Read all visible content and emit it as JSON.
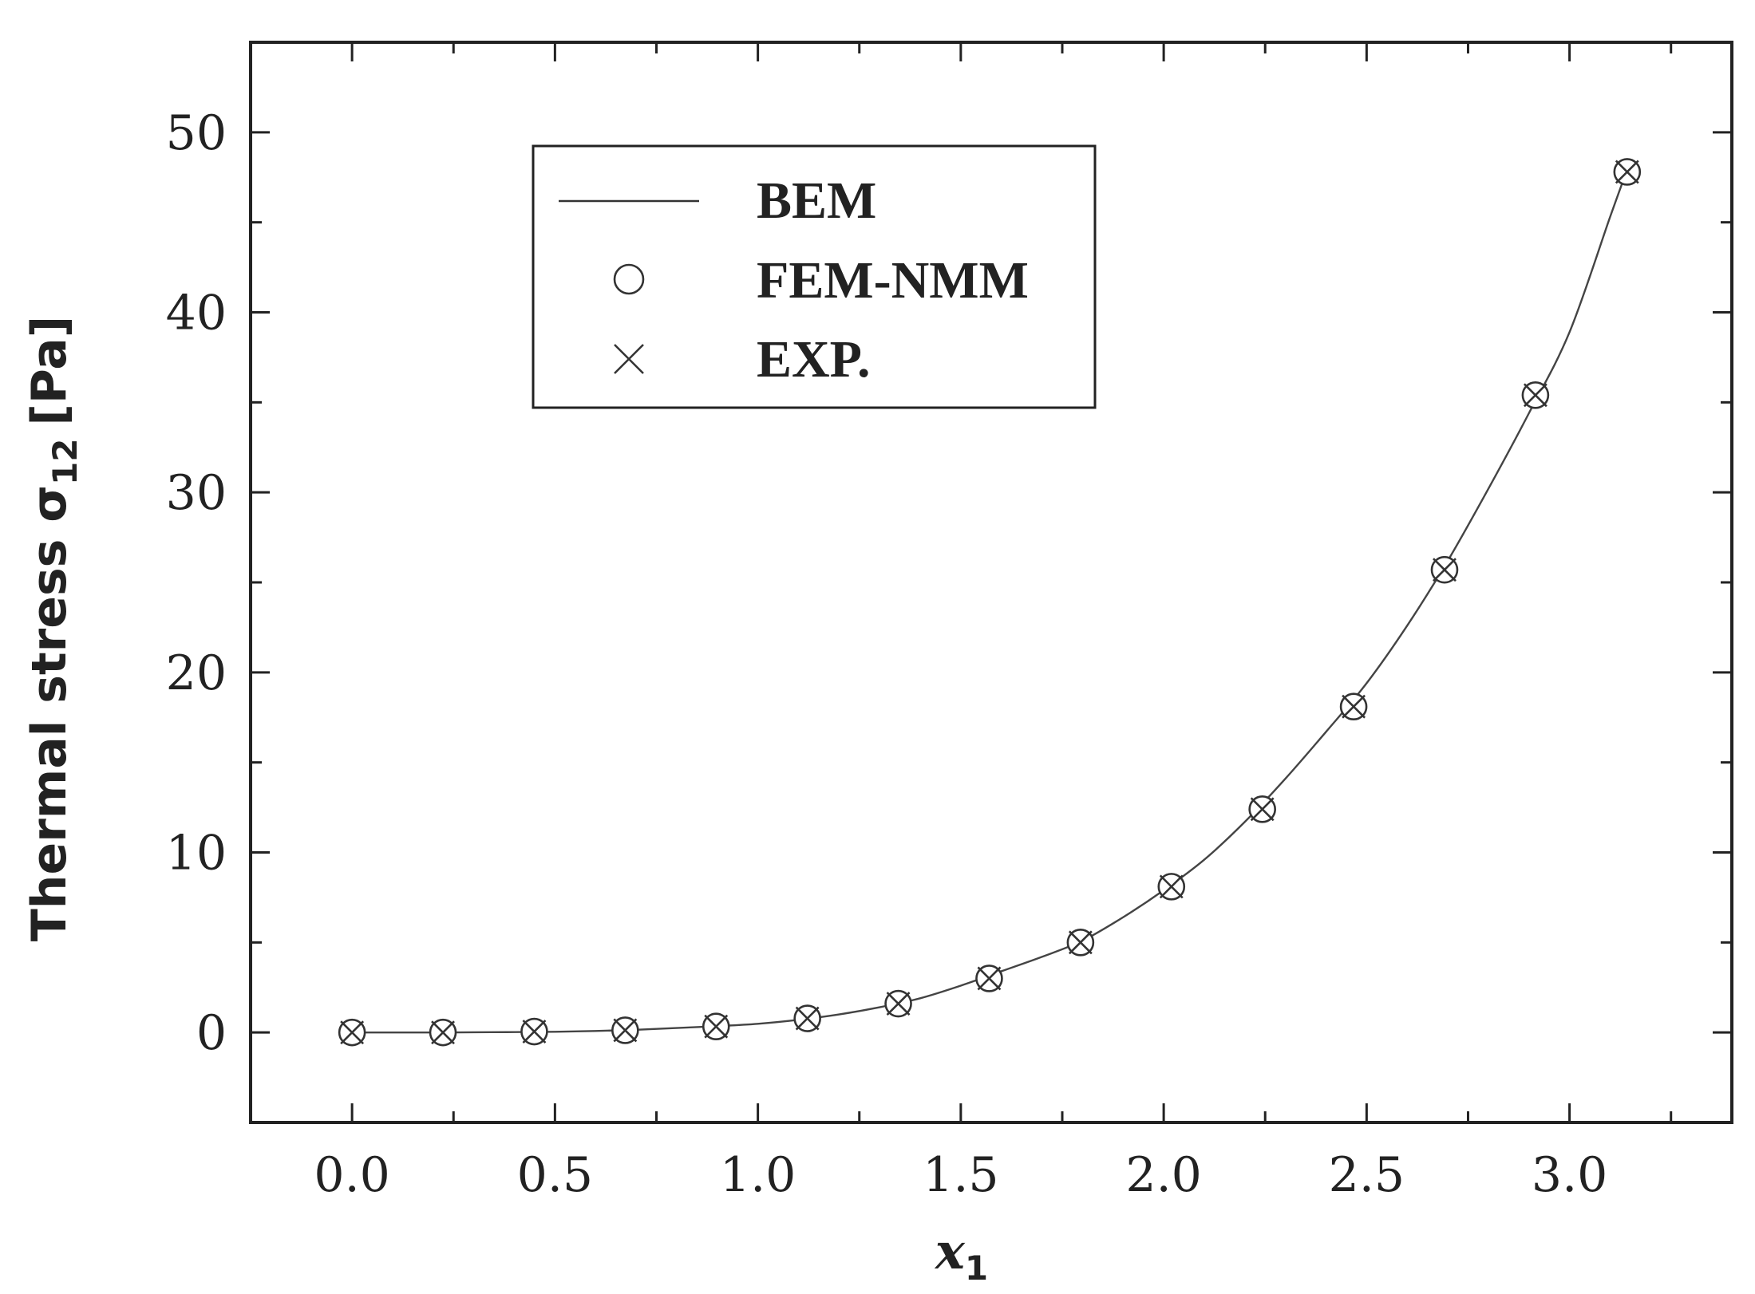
{
  "chart_data": {
    "type": "line",
    "x_axis": {
      "label_main": "x",
      "label_sub": "1",
      "range": [
        -0.25,
        3.4
      ],
      "major_ticks": [
        0.0,
        0.5,
        1.0,
        1.5,
        2.0,
        2.5,
        3.0
      ],
      "tick_labels": [
        "0.0",
        "0.5",
        "1.0",
        "1.5",
        "2.0",
        "2.5",
        "3.0"
      ]
    },
    "y_axis": {
      "label_main": "Thermal stress σ",
      "label_sub": "12",
      "label_unit": "[Pa]",
      "range": [
        -5,
        55
      ],
      "major_ticks": [
        0,
        10,
        20,
        30,
        40,
        50
      ],
      "tick_labels": [
        "0",
        "10",
        "20",
        "30",
        "40",
        "50"
      ]
    },
    "grid": false,
    "legend": {
      "placement": "top-left",
      "entries": [
        {
          "label": "BEM",
          "marker": "line"
        },
        {
          "label": "FEM-NMM",
          "marker": "circle"
        },
        {
          "label": "EXP.",
          "marker": "cross"
        }
      ]
    },
    "series": [
      {
        "name": "BEM",
        "style": "line",
        "x": [
          0,
          0.1,
          0.2,
          0.3,
          0.4,
          0.5,
          0.6,
          0.7,
          0.8,
          0.9,
          1.0,
          1.1,
          1.2,
          1.3,
          1.4,
          1.5,
          1.6,
          1.7,
          1.8,
          1.9,
          2.0,
          2.1,
          2.2,
          2.3,
          2.4,
          2.5,
          2.6,
          2.7,
          2.8,
          2.9,
          3.0,
          3.1,
          3.14
        ],
        "y": [
          0,
          0,
          0,
          0.01,
          0.02,
          0.04,
          0.08,
          0.15,
          0.25,
          0.35,
          0.48,
          0.7,
          1.0,
          1.4,
          1.9,
          2.6,
          3.4,
          4.2,
          5.1,
          6.4,
          7.9,
          9.6,
          11.7,
          14.1,
          16.7,
          19.4,
          22.6,
          26.2,
          30.2,
          34.4,
          38.9,
          45.3,
          47.8
        ]
      },
      {
        "name": "FEM-NMM",
        "style": "circle",
        "x": [
          0.0,
          0.224,
          0.449,
          0.673,
          0.897,
          1.122,
          1.346,
          1.57,
          1.795,
          2.019,
          2.243,
          2.468,
          2.692,
          2.916,
          3.142
        ],
        "y": [
          0.0,
          0.0,
          0.05,
          0.12,
          0.33,
          0.78,
          1.6,
          3.0,
          5.0,
          8.1,
          12.4,
          18.1,
          25.7,
          35.4,
          47.8
        ]
      },
      {
        "name": "EXP.",
        "style": "cross",
        "x": [
          0.0,
          0.224,
          0.449,
          0.673,
          0.897,
          1.122,
          1.346,
          1.57,
          1.795,
          2.019,
          2.243,
          2.468,
          2.692,
          2.916,
          3.142
        ],
        "y": [
          0.0,
          0.0,
          0.05,
          0.12,
          0.33,
          0.78,
          1.6,
          3.0,
          5.0,
          8.1,
          12.4,
          18.1,
          25.7,
          35.4,
          47.8
        ]
      }
    ]
  }
}
